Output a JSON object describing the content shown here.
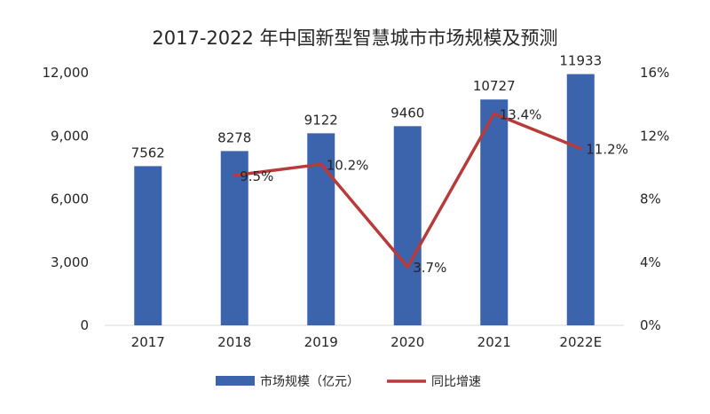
{
  "chart_data": {
    "type": "bar+line",
    "title": "2017-2022 年中国新型智慧城市市场规模及预测",
    "categories": [
      "2017",
      "2018",
      "2019",
      "2020",
      "2021",
      "2022E"
    ],
    "series": [
      {
        "name": "市场规模（亿元）",
        "type": "bar",
        "axis": "left",
        "values": [
          7562,
          8278,
          9122,
          9460,
          10727,
          11933
        ],
        "labels": [
          "7562",
          "8278",
          "9122",
          "9460",
          "10727",
          "11933"
        ],
        "color": "#3C64AD"
      },
      {
        "name": "同比增速",
        "type": "line",
        "axis": "right",
        "values": [
          null,
          9.5,
          10.2,
          3.7,
          13.4,
          11.2
        ],
        "labels": [
          null,
          "9.5%",
          "10.2%",
          "3.7%",
          "13.4%",
          "11.2%"
        ],
        "color": "#B83A3A"
      }
    ],
    "y_left": {
      "min": 0,
      "max": 12000,
      "ticks": [
        "0",
        "3,000",
        "6,000",
        "9,000",
        "12,000"
      ]
    },
    "y_right": {
      "min": 0,
      "max": 16,
      "ticks": [
        "0%",
        "4%",
        "8%",
        "12%",
        "16%"
      ]
    },
    "legend_position": "bottom",
    "grid": false
  }
}
